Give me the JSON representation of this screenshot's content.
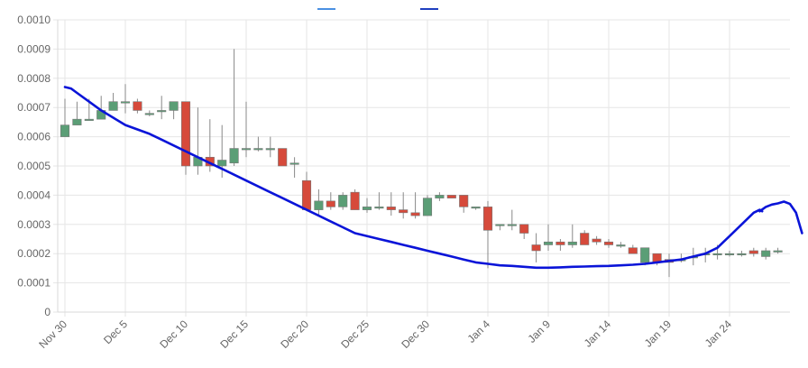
{
  "chart_data": {
    "type": "candlestick",
    "title": "",
    "xlabel": "",
    "ylabel": "",
    "ylim": [
      0,
      0.001
    ],
    "y_ticks": [
      "0",
      "0.0001",
      "0.0002",
      "0.0003",
      "0.0004",
      "0.0005",
      "0.0006",
      "0.0007",
      "0.0008",
      "0.0009",
      "0.0010"
    ],
    "x_ticks": [
      "Nov 30",
      "Dec 5",
      "Dec 10",
      "Dec 15",
      "Dec 20",
      "Dec 25",
      "Dec 30",
      "Jan 4",
      "Jan 9",
      "Jan 14",
      "Jan 19",
      "Jan 24"
    ],
    "legend": [
      {
        "name": "",
        "color": "#4a90e2"
      },
      {
        "name": "",
        "color": "#1f3fbf"
      }
    ],
    "colors": {
      "up": "#5b9e76",
      "down": "#d64a3b",
      "wick": "#888888",
      "trend": "#0a14d8",
      "grid": "#e6e6e6"
    },
    "days": [
      "Nov 30",
      "Dec 1",
      "Dec 2",
      "Dec 3",
      "Dec 4",
      "Dec 5",
      "Dec 6",
      "Dec 7",
      "Dec 8",
      "Dec 9",
      "Dec 10",
      "Dec 11",
      "Dec 12",
      "Dec 13",
      "Dec 14",
      "Dec 15",
      "Dec 16",
      "Dec 17",
      "Dec 18",
      "Dec 19",
      "Dec 20",
      "Dec 21",
      "Dec 22",
      "Dec 23",
      "Dec 24",
      "Dec 25",
      "Dec 26",
      "Dec 27",
      "Dec 28",
      "Dec 29",
      "Dec 30",
      "Dec 31",
      "Jan 1",
      "Jan 2",
      "Jan 3",
      "Jan 4",
      "Jan 5",
      "Jan 6",
      "Jan 7",
      "Jan 8",
      "Jan 9",
      "Jan 10",
      "Jan 11",
      "Jan 12",
      "Jan 13",
      "Jan 14",
      "Jan 15",
      "Jan 16",
      "Jan 17",
      "Jan 18",
      "Jan 19",
      "Jan 20",
      "Jan 21",
      "Jan 22",
      "Jan 23",
      "Jan 24",
      "Jan 25",
      "Jan 26",
      "Jan 27",
      "Jan 28"
    ],
    "open": [
      0.0006,
      0.00064,
      0.00066,
      0.00066,
      0.00069,
      0.00072,
      0.00072,
      0.00068,
      0.00069,
      0.00069,
      0.00072,
      0.0005,
      0.00053,
      0.0005,
      0.00051,
      0.00056,
      0.00056,
      0.00056,
      0.00056,
      0.00051,
      0.00045,
      0.00035,
      0.00038,
      0.00036,
      0.00041,
      0.00035,
      0.00036,
      0.00036,
      0.00035,
      0.00034,
      0.00033,
      0.00039,
      0.0004,
      0.0004,
      0.00036,
      0.00036,
      0.0003,
      0.0003,
      0.0003,
      0.00023,
      0.00023,
      0.00024,
      0.00023,
      0.00027,
      0.00025,
      0.00024,
      0.00023,
      0.00022,
      0.00017,
      0.0002,
      0.00018,
      0.00018,
      0.00019,
      0.0002,
      0.0002,
      0.0002,
      0.0002,
      0.00021,
      0.00019,
      0.00021
    ],
    "close": [
      0.00064,
      0.00066,
      0.00066,
      0.00069,
      0.00072,
      0.00072,
      0.00069,
      0.00068,
      0.00069,
      0.00072,
      0.0005,
      0.00053,
      0.0005,
      0.00052,
      0.00056,
      0.00056,
      0.00056,
      0.00056,
      0.0005,
      0.00051,
      0.00035,
      0.00038,
      0.00036,
      0.0004,
      0.00035,
      0.00036,
      0.00036,
      0.00035,
      0.00034,
      0.00033,
      0.00039,
      0.0004,
      0.00039,
      0.00036,
      0.00036,
      0.00028,
      0.0003,
      0.0003,
      0.00027,
      0.00021,
      0.00024,
      0.00023,
      0.00024,
      0.00023,
      0.00024,
      0.00023,
      0.00023,
      0.0002,
      0.00022,
      0.00017,
      0.00017,
      0.00018,
      0.00019,
      0.0002,
      0.0002,
      0.0002,
      0.0002,
      0.0002,
      0.00021,
      0.00021
    ],
    "high": [
      0.00073,
      0.00072,
      0.00073,
      0.00074,
      0.00075,
      0.00078,
      0.00073,
      0.00069,
      0.00074,
      0.00072,
      0.00072,
      0.0007,
      0.00066,
      0.00064,
      0.0009,
      0.00072,
      0.0006,
      0.0006,
      0.00056,
      0.00053,
      0.00048,
      0.00042,
      0.00041,
      0.00041,
      0.00042,
      0.00039,
      0.00041,
      0.00041,
      0.00041,
      0.00041,
      0.0004,
      0.00041,
      0.0004,
      0.0004,
      0.00036,
      0.00038,
      0.0003,
      0.00035,
      0.0003,
      0.00027,
      0.0003,
      0.00025,
      0.0003,
      0.00028,
      0.00026,
      0.00025,
      0.00024,
      0.00023,
      0.00022,
      0.0002,
      0.0002,
      0.0002,
      0.00022,
      0.00022,
      0.00023,
      0.00021,
      0.00021,
      0.00022,
      0.00022,
      0.00022
    ],
    "low": [
      0.0006,
      0.00064,
      0.00066,
      0.00066,
      0.00069,
      0.00068,
      0.00068,
      0.00067,
      0.00066,
      0.00066,
      0.00047,
      0.00047,
      0.00048,
      0.00046,
      0.0005,
      0.00053,
      0.00055,
      0.00053,
      0.0005,
      0.00046,
      0.00035,
      0.00033,
      0.00035,
      0.00035,
      0.00035,
      0.00034,
      0.00035,
      0.00033,
      0.00032,
      0.00032,
      0.00033,
      0.00038,
      0.00039,
      0.00034,
      0.00035,
      0.00015,
      0.00028,
      0.00028,
      0.00025,
      0.00017,
      0.00021,
      0.00021,
      0.00022,
      0.00023,
      0.00023,
      0.00022,
      0.00022,
      0.0002,
      0.00016,
      0.00016,
      0.00012,
      0.00017,
      0.00016,
      0.00017,
      0.00018,
      0.00019,
      0.00019,
      0.00019,
      0.00018,
      0.0002
    ],
    "trend_line": {
      "x_days": [
        0,
        0.5,
        1,
        2,
        3,
        4,
        5,
        6,
        7,
        8,
        9,
        10,
        11,
        12,
        13,
        14,
        15,
        16,
        17,
        18,
        19,
        20,
        21,
        22,
        23,
        24,
        25,
        26,
        27,
        28,
        29,
        30,
        31,
        32,
        33,
        34,
        35,
        36,
        37,
        38,
        39,
        40,
        41,
        42,
        43,
        44,
        45,
        46,
        47,
        48,
        49,
        50,
        51,
        52,
        53,
        54,
        54.5,
        55,
        55.5,
        56,
        56.5,
        57,
        57.5,
        57.7
      ],
      "values": [
        0.00077,
        0.000765,
        0.00075,
        0.00072,
        0.00069,
        0.000665,
        0.00064,
        0.000625,
        0.00061,
        0.00059,
        0.00057,
        0.00055,
        0.00053,
        0.00051,
        0.00049,
        0.00047,
        0.00045,
        0.00043,
        0.00041,
        0.00039,
        0.00037,
        0.00035,
        0.00033,
        0.00031,
        0.00029,
        0.00027,
        0.00026,
        0.00025,
        0.00024,
        0.00023,
        0.00022,
        0.00021,
        0.0002,
        0.00019,
        0.00018,
        0.00017,
        0.000165,
        0.00016,
        0.000158,
        0.000155,
        0.000152,
        0.000152,
        0.000153,
        0.000155,
        0.000156,
        0.000157,
        0.000158,
        0.00016,
        0.000162,
        0.000165,
        0.00017,
        0.000175,
        0.00018,
        0.00019,
        0.0002,
        0.00022,
        0.00024,
        0.00026,
        0.00028,
        0.0003,
        0.00032,
        0.00034,
        0.00035,
        0.000345
      ]
    },
    "trend_hook": {
      "x_days": [
        57.5,
        58,
        58.5,
        59,
        59.5,
        60,
        60.5,
        61
      ],
      "values": [
        0.000345,
        0.00036,
        0.000368,
        0.000372,
        0.000378,
        0.00037,
        0.00034,
        0.00027
      ]
    }
  }
}
